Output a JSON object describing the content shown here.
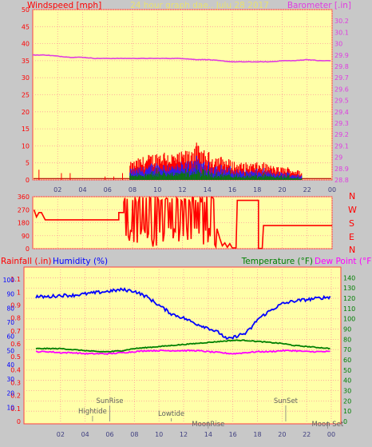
{
  "header": {
    "left_label": "Windspeed [mph]",
    "center_label": "24 hour graph dae.. Julu 28 2017",
    "right_label": "Barometer [.in]"
  },
  "wind_chart": {
    "yleft": {
      "min": 0,
      "max": 50,
      "ticks": [
        0,
        5,
        10,
        15,
        20,
        25,
        30,
        35,
        40,
        45,
        50
      ]
    },
    "yright": {
      "min": 28.8,
      "max": 30.3,
      "ticks": [
        "28.8",
        "28.9",
        "29",
        "29.1",
        "29.2",
        "29.3",
        "29.4",
        "29.5",
        "29.6",
        "29.7",
        "29.8",
        "29.9",
        "30",
        "30.1",
        "30.2"
      ]
    },
    "x_ticks": [
      "02",
      "04",
      "06",
      "08",
      "10",
      "12",
      "14",
      "16",
      "18",
      "20",
      "22",
      "00"
    ],
    "barometer_series": {
      "color": "#e03ce0",
      "hours": [
        0,
        1,
        2,
        3,
        4,
        5,
        6,
        7,
        8,
        9,
        10,
        11,
        12,
        13,
        14,
        15,
        16,
        17,
        18,
        19,
        20,
        21,
        22,
        23,
        24
      ],
      "values": [
        29.9,
        29.9,
        29.89,
        29.88,
        29.88,
        29.87,
        29.87,
        29.87,
        29.87,
        29.87,
        29.87,
        29.87,
        29.87,
        29.86,
        29.86,
        29.85,
        29.84,
        29.84,
        29.84,
        29.84,
        29.85,
        29.85,
        29.86,
        29.85,
        29.85
      ]
    },
    "gust_color": "#ff0000",
    "avg_color": "#2020ff",
    "low_color": "#008000",
    "calm_color": "#b00000",
    "activity_start": 7.8,
    "activity_end": 21.6,
    "gust_profile": {
      "hours": [
        7.8,
        8.5,
        9.5,
        10.5,
        11.5,
        12.5,
        13.0,
        13.5,
        14.5,
        15.5,
        16.5,
        17.5,
        18.5,
        19.5,
        20.5,
        21.5
      ],
      "values": [
        4,
        5,
        6,
        7,
        6,
        7,
        9,
        7,
        6,
        5,
        4,
        4,
        4,
        3,
        3,
        2
      ]
    }
  },
  "direction_chart": {
    "ticks": [
      0,
      90,
      180,
      270,
      360
    ],
    "compass": [
      "N",
      "W",
      "S",
      "E",
      "N"
    ],
    "line_color": "#ff0000"
  },
  "bottom_chart": {
    "labels": {
      "rainfall": "Rainfall (.in)",
      "humidity": "Humidity (%)",
      "temperature": "Temperature (°F)",
      "dewpoint": "Dew Point (°F)"
    },
    "rain_ticks": [
      "0",
      "0.1",
      "0.2",
      "0.3",
      "0.4",
      "0.5",
      "0.6",
      "0.7",
      "0.8",
      "0.9",
      "1",
      "1.1"
    ],
    "humidity_ticks": [
      10,
      20,
      30,
      40,
      50,
      60,
      70,
      80,
      90,
      100
    ],
    "temp_ticks": [
      0,
      10,
      20,
      30,
      40,
      50,
      60,
      70,
      80,
      90,
      100,
      110,
      120,
      130,
      140
    ],
    "x_ticks": [
      "02",
      "04",
      "06",
      "08",
      "10",
      "12",
      "14",
      "16",
      "18",
      "20",
      "22",
      "00"
    ],
    "humidity": {
      "color": "#0000ff",
      "hours": [
        0,
        1,
        2,
        3,
        4,
        5,
        6,
        7,
        8,
        9,
        10,
        11,
        12,
        13,
        14,
        15,
        15.5,
        16,
        16.5,
        17,
        17.5,
        18,
        19,
        20,
        21,
        22,
        23,
        24
      ],
      "values": [
        88,
        88,
        89,
        89,
        90,
        91,
        92,
        93,
        92,
        88,
        82,
        76,
        73,
        69,
        66,
        62,
        58,
        59,
        61,
        62,
        66,
        72,
        78,
        83,
        85,
        86,
        87,
        88
      ]
    },
    "temperature": {
      "color": "#008000",
      "hours": [
        0,
        1,
        2,
        3,
        4,
        5,
        6,
        7,
        8,
        9,
        10,
        11,
        12,
        13,
        14,
        15,
        16,
        17,
        18,
        19,
        20,
        21,
        22,
        23,
        24
      ],
      "values": [
        71,
        71,
        71,
        70,
        69,
        68,
        68,
        69,
        71,
        72,
        73,
        74,
        75,
        76,
        77,
        78,
        79,
        79,
        78,
        77,
        76,
        74,
        73,
        72,
        71
      ]
    },
    "dewpoint": {
      "color": "#ff00ff",
      "hours": [
        0,
        1,
        2,
        3,
        4,
        5,
        6,
        7,
        8,
        9,
        10,
        11,
        12,
        13,
        14,
        15,
        16,
        17,
        18,
        19,
        20,
        21,
        22,
        23,
        24
      ],
      "values": [
        68,
        68,
        67,
        67,
        66,
        66,
        66,
        67,
        68,
        69,
        69,
        69,
        69,
        69,
        68,
        67,
        66,
        67,
        68,
        68,
        69,
        69,
        68,
        68,
        68
      ]
    },
    "astro_events": [
      {
        "label": "SunRise",
        "hour": 6.0,
        "level": 3
      },
      {
        "label": "Hightide",
        "hour": 4.6,
        "level": 2
      },
      {
        "label": "Lowtide",
        "hour": 11.0,
        "level": 1
      },
      {
        "label": "MoonRise",
        "hour": 14.0,
        "level": 0
      },
      {
        "label": "SunSet",
        "hour": 20.3,
        "level": 3
      },
      {
        "label": "Moon Set",
        "hour": 23.7,
        "level": 0
      }
    ]
  }
}
